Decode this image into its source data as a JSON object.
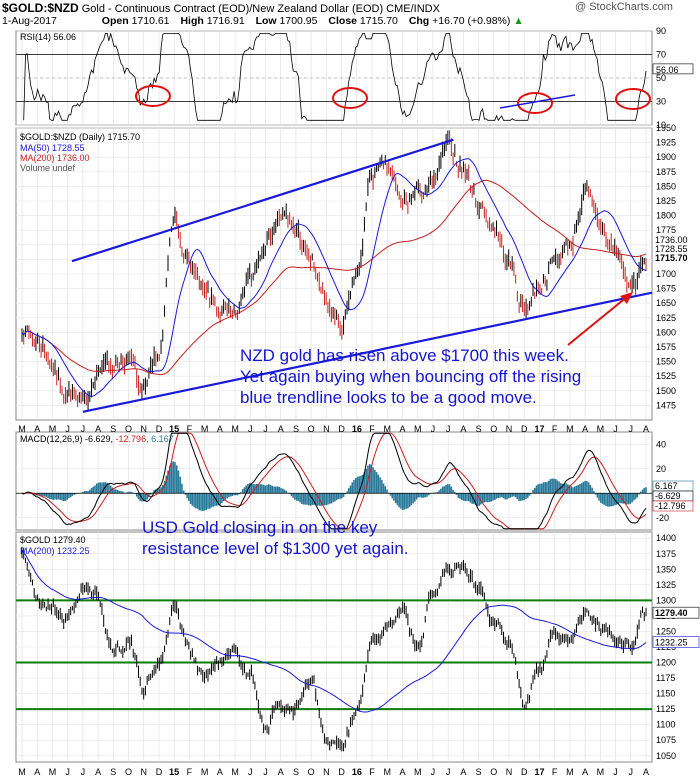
{
  "header": {
    "symbol": "$GOLD:$NZD",
    "description": "Gold - Continuous Contract (EOD)/New Zealand Dollar (EOD) CME/INDX",
    "date": "1-Aug-2017",
    "open_label": "Open",
    "open": "1710.61",
    "high_label": "High",
    "high": "1716.91",
    "low_label": "Low",
    "low": "1700.95",
    "close_label": "Close",
    "close": "1715.70",
    "chg_label": "Chg",
    "chg": "+16.70 (+0.98%)",
    "arrow": "▲",
    "watermark": "@ StockCharts.com"
  },
  "colors": {
    "blue_line": "#1a1adc",
    "red_line": "#c81e1e",
    "green_line": "#0a7d0a",
    "price": "#000000",
    "annotation": "#1515d0",
    "macd_hist": "#2a7a9a",
    "circle": "#e01010"
  },
  "x_axis_labels": [
    "M",
    "A",
    "M",
    "J",
    "J",
    "A",
    "S",
    "O",
    "N",
    "D",
    "15",
    "F",
    "M",
    "A",
    "M",
    "J",
    "J",
    "A",
    "S",
    "O",
    "N",
    "D",
    "16",
    "F",
    "M",
    "A",
    "M",
    "J",
    "J",
    "A",
    "S",
    "O",
    "N",
    "D",
    "17",
    "F",
    "M",
    "A",
    "M",
    "J",
    "J",
    "A"
  ],
  "chart_data": [
    {
      "type": "line",
      "title": "RSI(14) 56.06",
      "series": [
        {
          "name": "RSI(14)",
          "last": 56.06
        }
      ],
      "ylim": [
        10,
        90
      ],
      "yticks": [
        90,
        70,
        50,
        30,
        10
      ],
      "reference_lines": [
        70,
        30
      ],
      "last_value_label": "56.06"
    },
    {
      "type": "line",
      "title": "$GOLD:$NZD (Daily) 1715.70",
      "series": [
        {
          "name": "$GOLD:$NZD (Daily)",
          "last": 1715.7,
          "key_points": [
            [
              "2014-03",
              1610
            ],
            [
              "2014-04",
              1585
            ],
            [
              "2014-06",
              1500
            ],
            [
              "2014-07",
              1470
            ],
            [
              "2014-08",
              1540
            ],
            [
              "2014-10",
              1555
            ],
            [
              "2014-11",
              1490
            ],
            [
              "2014-12",
              1560
            ],
            [
              "2015-01",
              1790
            ],
            [
              "2015-02",
              1720
            ],
            [
              "2015-03",
              1660
            ],
            [
              "2015-04",
              1640
            ],
            [
              "2015-05",
              1620
            ],
            [
              "2015-06",
              1700
            ],
            [
              "2015-07",
              1760
            ],
            [
              "2015-08",
              1800
            ],
            [
              "2015-09",
              1775
            ],
            [
              "2015-10",
              1720
            ],
            [
              "2015-11",
              1650
            ],
            [
              "2015-12",
              1600
            ],
            [
              "2016-01",
              1700
            ],
            [
              "2016-02",
              1870
            ],
            [
              "2016-03",
              1880
            ],
            [
              "2016-04",
              1820
            ],
            [
              "2016-05",
              1840
            ],
            [
              "2016-06",
              1850
            ],
            [
              "2016-07",
              1920
            ],
            [
              "2016-08",
              1880
            ],
            [
              "2016-09",
              1820
            ],
            [
              "2016-10",
              1780
            ],
            [
              "2016-11",
              1720
            ],
            [
              "2016-12",
              1640
            ],
            [
              "2017-01",
              1680
            ],
            [
              "2017-02",
              1720
            ],
            [
              "2017-03",
              1750
            ],
            [
              "2017-04",
              1840
            ],
            [
              "2017-05",
              1780
            ],
            [
              "2017-06",
              1740
            ],
            [
              "2017-07",
              1680
            ],
            [
              "2017-08",
              1715.7
            ]
          ]
        },
        {
          "name": "MA(50)",
          "last": 1728.55
        },
        {
          "name": "MA(200)",
          "last": 1736.0
        }
      ],
      "legend": [
        "$GOLD:$NZD (Daily) 1715.70",
        "MA(50) 1728.55",
        "MA(200) 1736.00",
        "Volume undef"
      ],
      "ylim": [
        1450,
        1950
      ],
      "yticks": [
        1950,
        1925,
        1900,
        1875,
        1850,
        1825,
        1800,
        1775,
        1750,
        1725,
        1700,
        1675,
        1650,
        1625,
        1600,
        1575,
        1550,
        1525,
        1500,
        1475
      ],
      "value_labels": [
        "1736.00",
        "1728.55",
        "1715.70"
      ],
      "annotations": [
        "NZD gold has risen above $1700 this week.",
        "Yet again buying when bouncing off the rising",
        "blue trendline looks to be a good move."
      ]
    },
    {
      "type": "line",
      "title": "MACD(12,26,9) -6.629, -12.796, 6.167",
      "series": [
        {
          "name": "MACD",
          "last": -6.629
        },
        {
          "name": "Signal",
          "last": -12.796
        },
        {
          "name": "Histogram",
          "last": 6.167
        }
      ],
      "legend_parts": [
        "MACD(12,26,9) -6.629,",
        "-12.796,",
        "6.167"
      ],
      "ylim": [
        -30,
        50
      ],
      "yticks": [
        40,
        20,
        0,
        -20
      ],
      "value_labels": [
        "6.167",
        "-6.629",
        "-12.796"
      ],
      "annotations": [
        "USD Gold closing in on the key",
        "resistance level of $1300 yet again."
      ]
    },
    {
      "type": "line",
      "title": "$GOLD 1279.40",
      "series": [
        {
          "name": "$GOLD",
          "last": 1279.4,
          "key_points": [
            [
              "2014-03",
              1380
            ],
            [
              "2014-04",
              1300
            ],
            [
              "2014-05",
              1290
            ],
            [
              "2014-06",
              1270
            ],
            [
              "2014-07",
              1320
            ],
            [
              "2014-08",
              1300
            ],
            [
              "2014-09",
              1220
            ],
            [
              "2014-10",
              1235
            ],
            [
              "2014-11",
              1160
            ],
            [
              "2014-12",
              1200
            ],
            [
              "2015-01",
              1290
            ],
            [
              "2015-02",
              1220
            ],
            [
              "2015-03",
              1180
            ],
            [
              "2015-04",
              1200
            ],
            [
              "2015-05",
              1215
            ],
            [
              "2015-06",
              1180
            ],
            [
              "2015-07",
              1100
            ],
            [
              "2015-08",
              1130
            ],
            [
              "2015-09",
              1125
            ],
            [
              "2015-10",
              1170
            ],
            [
              "2015-11",
              1070
            ],
            [
              "2015-12",
              1060
            ],
            [
              "2016-01",
              1120
            ],
            [
              "2016-02",
              1230
            ],
            [
              "2016-03",
              1250
            ],
            [
              "2016-04",
              1290
            ],
            [
              "2016-05",
              1220
            ],
            [
              "2016-06",
              1320
            ],
            [
              "2016-07",
              1360
            ],
            [
              "2016-08",
              1350
            ],
            [
              "2016-09",
              1320
            ],
            [
              "2016-10",
              1260
            ],
            [
              "2016-11",
              1230
            ],
            [
              "2016-12",
              1140
            ],
            [
              "2017-01",
              1190
            ],
            [
              "2017-02",
              1250
            ],
            [
              "2017-03",
              1240
            ],
            [
              "2017-04",
              1280
            ],
            [
              "2017-05",
              1260
            ],
            [
              "2017-06",
              1240
            ],
            [
              "2017-07",
              1230
            ],
            [
              "2017-08",
              1279.4
            ]
          ]
        },
        {
          "name": "MA(200)",
          "last": 1232.25
        }
      ],
      "legend": [
        "$GOLD 1279.40",
        "MA(200) 1232.25"
      ],
      "ylim": [
        1040,
        1410
      ],
      "yticks": [
        1400,
        1375,
        1350,
        1325,
        1300,
        1275,
        1250,
        1225,
        1200,
        1175,
        1150,
        1125,
        1100,
        1075,
        1050
      ],
      "horizontal_levels": [
        1300,
        1200,
        1125
      ],
      "value_labels": [
        "1279.40",
        "1232.25"
      ]
    }
  ]
}
